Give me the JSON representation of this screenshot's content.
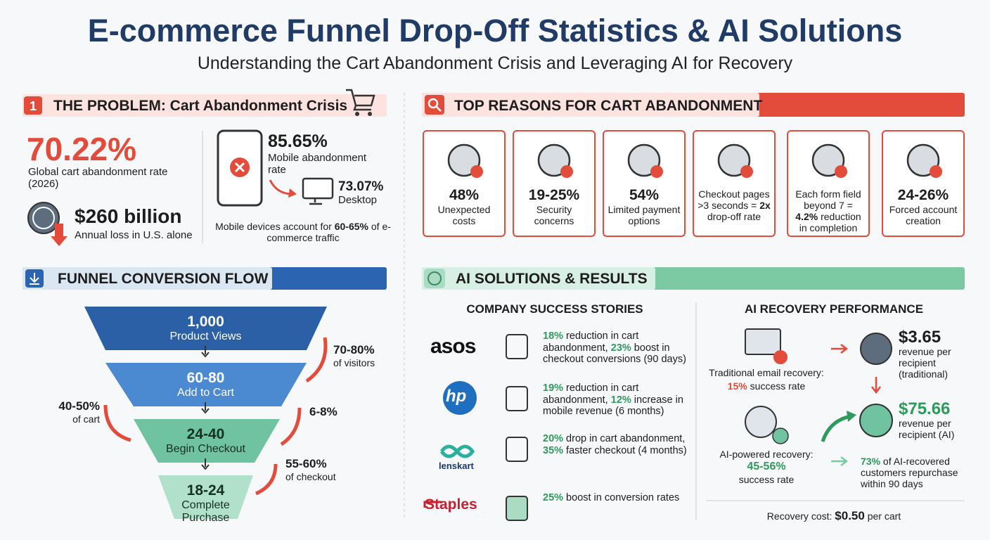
{
  "header": {
    "title": "E-commerce Funnel Drop-Off Statistics & AI Solutions",
    "subtitle": "Understanding the Cart Abandonment Crisis and Leveraging AI for Recovery"
  },
  "problem": {
    "number": "1",
    "title": "THE PROBLEM: Cart Abandonment Crisis",
    "global": {
      "value": "70.22%",
      "label": "Global cart abandonment rate (2026)"
    },
    "loss": {
      "value": "$260 billion",
      "label": "Annual loss in U.S. alone"
    },
    "mobile": {
      "value": "85.65%",
      "label": "Mobile abandonment rate"
    },
    "desktop": {
      "value": "73.07%",
      "label": "Desktop"
    },
    "traffic": [
      "Mobile devices account for ",
      "60-65%",
      " of e-commerce traffic"
    ]
  },
  "reasons": {
    "title": "TOP REASONS FOR CART ABANDONMENT",
    "items": [
      {
        "value": "48%",
        "label": "Unexpected costs"
      },
      {
        "value": "19-25%",
        "label": "Security concerns"
      },
      {
        "value": "54%",
        "label": "Limited payment options"
      },
      {
        "text": [
          "Checkout pages >3 seconds = ",
          "2x",
          " drop-off rate"
        ]
      },
      {
        "text": [
          "Each form field beyond 7 = ",
          "4.2%",
          " reduction in completion"
        ]
      },
      {
        "value": "24-26%",
        "label": "Forced account creation"
      }
    ]
  },
  "funnel": {
    "title": "FUNNEL CONVERSION FLOW",
    "stages": [
      {
        "value": "1,000",
        "label": "Product Views"
      },
      {
        "value": "60-80",
        "label": "Add to Cart"
      },
      {
        "value": "24-40",
        "label": "Begin Checkout"
      },
      {
        "value": "18-24",
        "label": "Complete Purchase"
      }
    ],
    "drops": [
      {
        "value": "70-80%",
        "label": "of visitors"
      },
      {
        "value": "40-50%",
        "label": "of cart"
      },
      {
        "value": "6-8%"
      },
      {
        "value": "55-60%",
        "label": "of checkout"
      }
    ]
  },
  "ai": {
    "title": "AI SOLUTIONS & RESULTS",
    "stories_title": "COMPANY SUCCESS STORIES",
    "stories": [
      {
        "company": "asos",
        "text": [
          "18%",
          " reduction in cart abandonment, ",
          "23%",
          " boost in checkout conversions (90 days)"
        ]
      },
      {
        "company": "hp",
        "text": [
          "19%",
          " reduction in cart abandonment, ",
          "12%",
          " increase in mobile revenue (6 months)"
        ]
      },
      {
        "company": "lenskart",
        "text": [
          "20%",
          " drop in cart abandonment, ",
          "35%",
          " faster checkout (4 months)"
        ]
      },
      {
        "company": "Staples",
        "text": [
          "25%",
          " boost in conversion rates"
        ]
      }
    ],
    "performance": {
      "title": "AI RECOVERY PERFORMANCE",
      "traditional": {
        "label": "Traditional email recovery:",
        "rate": "15%",
        "rate_label": "success rate"
      },
      "traditional_revenue": {
        "value": "$3.65",
        "label": "revenue per recipient (traditional)"
      },
      "ai": {
        "label": "AI-powered recovery:",
        "rate": "45-56%",
        "rate_label": "success rate"
      },
      "ai_revenue": {
        "value": "$75.66",
        "label": "revenue per recipient (AI)"
      },
      "repurchase": [
        "73%",
        " of AI-recovered customers repurchase within 90 days"
      ],
      "cost": [
        "Recovery cost: ",
        "$0.50",
        " per cart"
      ]
    }
  }
}
